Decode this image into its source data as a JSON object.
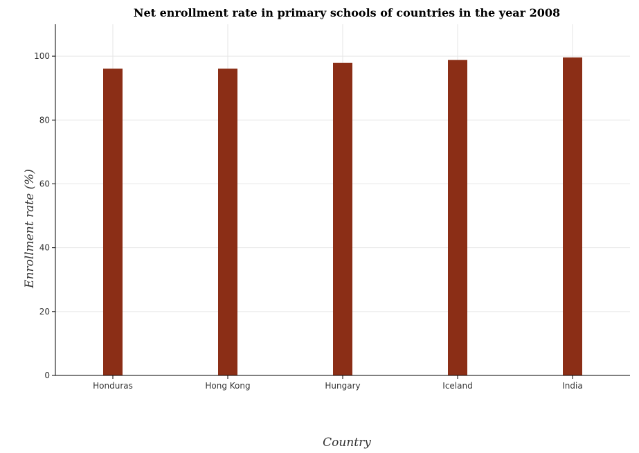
{
  "chart_data": {
    "type": "bar",
    "title": "Net enrollment rate in primary schools of countries in the year 2008",
    "xlabel": "Country",
    "ylabel": "Enrollment rate (%)",
    "categories": [
      "Honduras",
      "Hong Kong",
      "Hungary",
      "Iceland",
      "India"
    ],
    "values": [
      96.1,
      96.1,
      97.9,
      98.8,
      99.6
    ],
    "ylim": [
      0,
      110
    ],
    "yticks": [
      0,
      20,
      40,
      60,
      80,
      100
    ],
    "grid": true,
    "colors": {
      "bar": "#8b2e16",
      "grid": "#e6e6e6",
      "axis": "#000000"
    }
  }
}
